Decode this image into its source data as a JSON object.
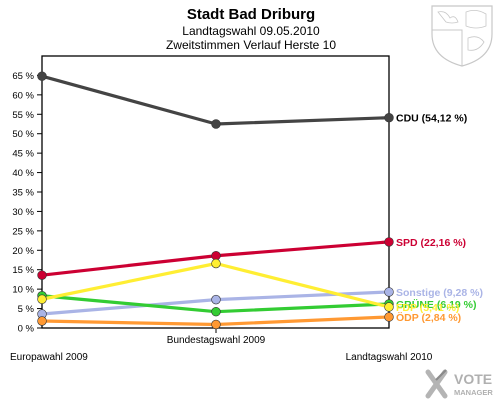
{
  "chart_data": {
    "type": "line",
    "title": "Stadt Bad Driburg",
    "subtitle": "Landtagswahl 09.05.2010",
    "subtitle2": "Zweitstimmen Verlauf Herste 10",
    "categories": [
      "Europawahl 2009",
      "Bundestagswahl 2009",
      "Landtagswahl 2010"
    ],
    "ylim": [
      0,
      70
    ],
    "yticks": [
      0,
      5,
      10,
      15,
      20,
      25,
      30,
      35,
      40,
      45,
      50,
      55,
      60,
      65
    ],
    "ytick_labels": [
      "0 %",
      "5 %",
      "10 %",
      "15 %",
      "20 %",
      "25 %",
      "30 %",
      "35 %",
      "40 %",
      "45 %",
      "50 %",
      "55 %",
      "60 %",
      "65 %"
    ],
    "grid": false,
    "series": [
      {
        "name": "CDU",
        "color": "#444444",
        "values": [
          64.8,
          52.5,
          54.12
        ],
        "end_label": "CDU (54,12 %)"
      },
      {
        "name": "SPD",
        "color": "#cc0033",
        "values": [
          13.6,
          18.6,
          22.16
        ],
        "end_label": "SPD (22,16 %)"
      },
      {
        "name": "Sonstige",
        "color": "#aab4e6",
        "values": [
          3.6,
          7.3,
          9.28
        ],
        "end_label": "Sonstige (9,28 %)"
      },
      {
        "name": "GRÜNE",
        "color": "#33cc33",
        "values": [
          8.3,
          4.2,
          6.19
        ],
        "end_label": "GRÜNE (6,19 %)"
      },
      {
        "name": "FDP",
        "color": "#ffee33",
        "values": [
          7.4,
          16.6,
          5.41
        ],
        "end_label": "FDP (5,41 %)"
      },
      {
        "name": "ÖDP",
        "color": "#ff9933",
        "values": [
          1.8,
          0.9,
          2.84
        ],
        "end_label": "ÖDP (2,84 %)"
      }
    ]
  },
  "brand": {
    "top": "VOTE",
    "bottom": "MANAGER"
  },
  "colors": {
    "axis": "#000000"
  }
}
